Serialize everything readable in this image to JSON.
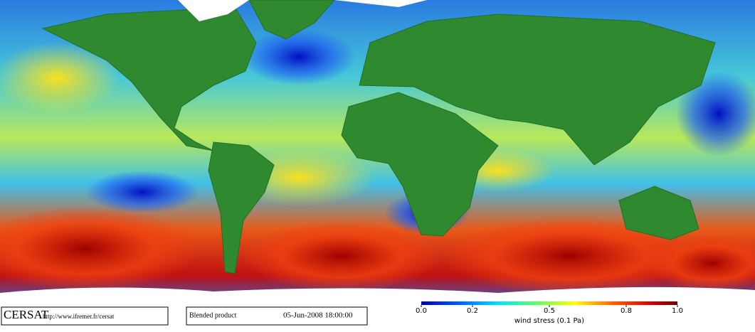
{
  "footer": {
    "logo": "CERSAT",
    "url": "http://www.ifremer.fr/cersat",
    "product": "Blended product",
    "datetime": "05-Jun-2008 18:00:00"
  },
  "colorbar": {
    "range": [
      0,
      1
    ],
    "ticks": [
      {
        "value": 0,
        "label": "0.0"
      },
      0.2,
      0.5,
      0.8,
      {
        "value": 1,
        "label": "1.0"
      }
    ],
    "label": "wind stress (0.1 Pa)"
  }
}
